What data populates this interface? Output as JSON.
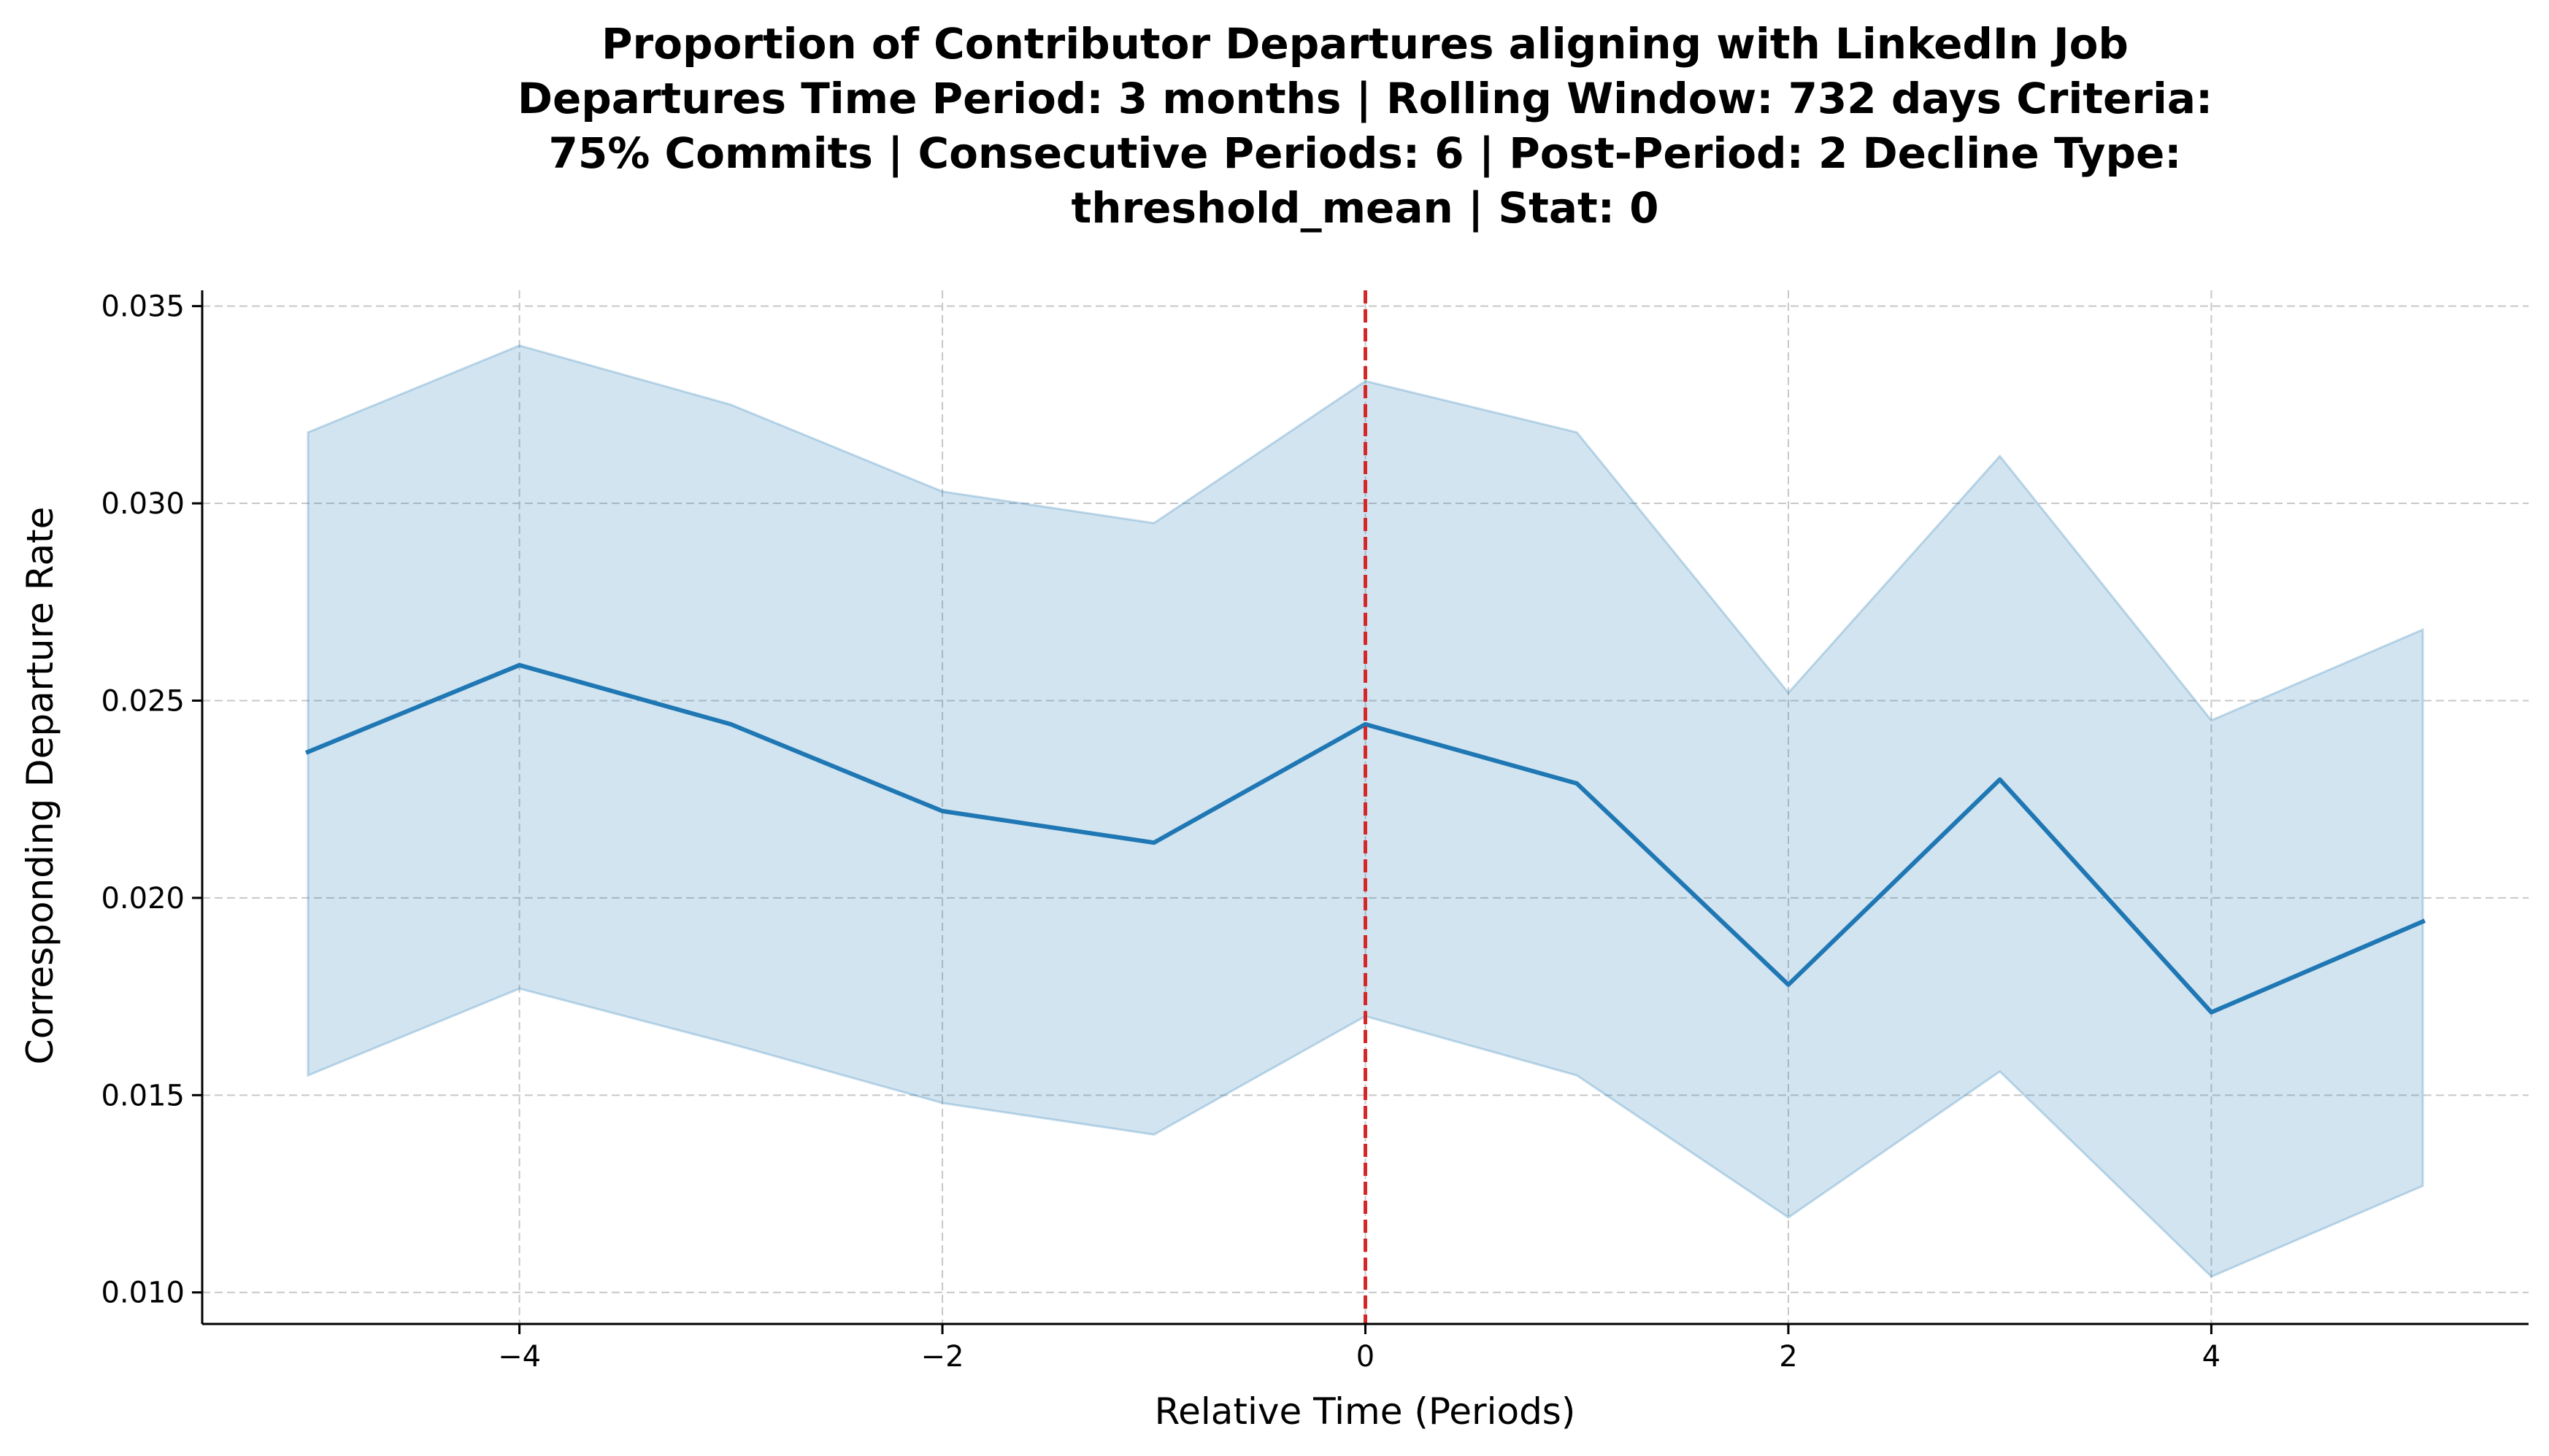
{
  "chart_data": {
    "type": "line",
    "title_lines": [
      "Proportion of Contributor Departures aligning with LinkedIn Job",
      "Departures Time Period: 3 months | Rolling Window: 732 days  Criteria:",
      "75% Commits | Consecutive Periods: 6 | Post-Period: 2 Decline Type:",
      "threshold_mean | Stat: 0"
    ],
    "xlabel": "Relative Time (Periods)",
    "ylabel": "Corresponding Departure Rate",
    "xlim": [
      -5.5,
      5.5
    ],
    "ylim": [
      0.0092,
      0.0354
    ],
    "xticks": [
      -4,
      -2,
      0,
      2,
      4
    ],
    "xtick_labels": [
      "−4",
      "−2",
      "0",
      "2",
      "4"
    ],
    "yticks": [
      0.01,
      0.015,
      0.02,
      0.025,
      0.03,
      0.035
    ],
    "ytick_labels": [
      "0.010",
      "0.015",
      "0.020",
      "0.025",
      "0.030",
      "0.035"
    ],
    "grid": true,
    "x": [
      -5,
      -4,
      -3,
      -2,
      -1,
      0,
      1,
      2,
      3,
      4,
      5
    ],
    "series": [
      {
        "values": [
          0.0237,
          0.0259,
          0.0244,
          0.0222,
          0.0214,
          0.0244,
          0.0229,
          0.0178,
          0.023,
          0.0171,
          0.0194
        ],
        "lower": [
          0.0155,
          0.0177,
          0.0163,
          0.0148,
          0.014,
          0.017,
          0.0155,
          0.0119,
          0.0156,
          0.0104,
          0.0127
        ],
        "upper": [
          0.0318,
          0.034,
          0.0325,
          0.0303,
          0.0295,
          0.0331,
          0.0318,
          0.0252,
          0.0312,
          0.0245,
          0.0268
        ]
      }
    ],
    "vline_x": 0,
    "colors": {
      "line": "#1f77b4",
      "band": "#1f77b4",
      "vline": "#d62728",
      "grid": "#c8c8c8",
      "axis": "#000000"
    }
  }
}
